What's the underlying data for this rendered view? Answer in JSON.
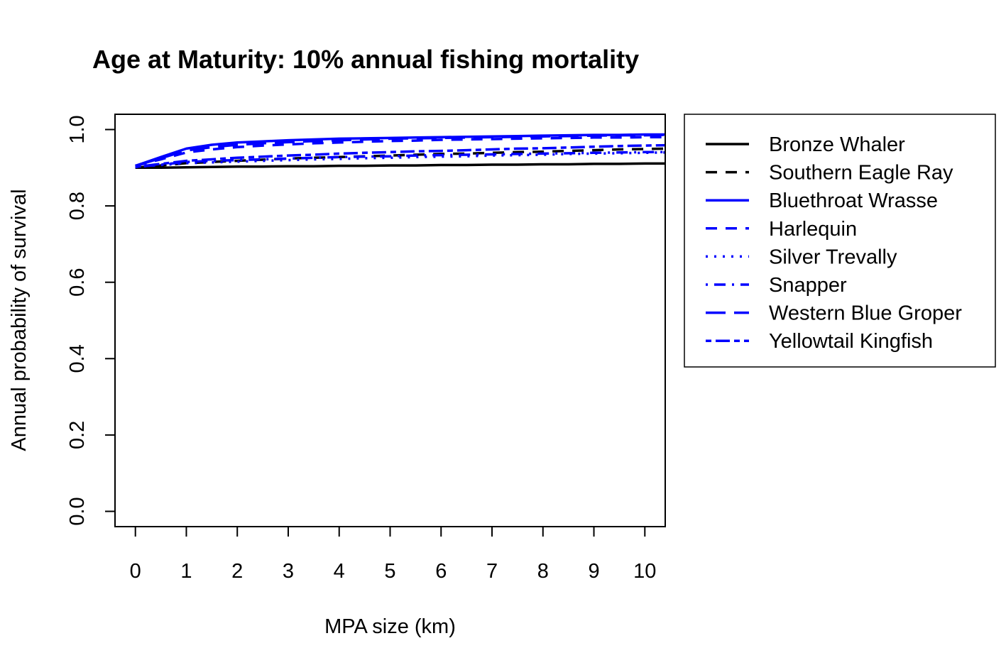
{
  "chart_data": {
    "type": "line",
    "title": "Age at Maturity: 10% annual fishing mortality",
    "xlabel": "MPA size (km)",
    "ylabel": "Annual probability of survival",
    "xlim": [
      -0.4,
      10.4
    ],
    "ylim": [
      -0.04,
      1.04
    ],
    "x_ticks": [
      "0",
      "1",
      "2",
      "3",
      "4",
      "5",
      "6",
      "7",
      "8",
      "9",
      "10"
    ],
    "y_ticks": [
      "0.0",
      "0.2",
      "0.4",
      "0.6",
      "0.8",
      "1.0"
    ],
    "grid": false,
    "legend_position": "right",
    "x": [
      0,
      0.5,
      1,
      1.5,
      2,
      2.5,
      3,
      3.5,
      4,
      4.5,
      5,
      5.5,
      6,
      6.5,
      7,
      7.5,
      8,
      8.5,
      9,
      9.5,
      10,
      10.4
    ],
    "series": [
      {
        "name": "Bronze Whaler",
        "color": "#000000",
        "dash": "solid",
        "values": [
          0.9,
          0.9,
          0.901,
          0.902,
          0.903,
          0.903,
          0.904,
          0.904,
          0.905,
          0.905,
          0.906,
          0.906,
          0.907,
          0.907,
          0.908,
          0.908,
          0.909,
          0.909,
          0.91,
          0.91,
          0.911,
          0.911
        ]
      },
      {
        "name": "Southern Eagle Ray",
        "color": "#000000",
        "dash": "dashed",
        "values": [
          0.9,
          0.906,
          0.912,
          0.915,
          0.918,
          0.921,
          0.924,
          0.926,
          0.928,
          0.93,
          0.932,
          0.934,
          0.936,
          0.937,
          0.939,
          0.941,
          0.942,
          0.944,
          0.946,
          0.948,
          0.949,
          0.95
        ]
      },
      {
        "name": "Bluethroat Wrasse",
        "color": "#0000ff",
        "dash": "solid",
        "values": [
          0.905,
          0.928,
          0.95,
          0.96,
          0.966,
          0.969,
          0.972,
          0.974,
          0.976,
          0.977,
          0.978,
          0.979,
          0.98,
          0.981,
          0.982,
          0.983,
          0.984,
          0.985,
          0.986,
          0.986,
          0.987,
          0.987
        ]
      },
      {
        "name": "Harlequin",
        "color": "#0000ff",
        "dash": "dashed",
        "values": [
          0.905,
          0.922,
          0.94,
          0.948,
          0.954,
          0.958,
          0.961,
          0.964,
          0.966,
          0.968,
          0.97,
          0.971,
          0.973,
          0.974,
          0.975,
          0.976,
          0.977,
          0.978,
          0.979,
          0.979,
          0.98,
          0.98
        ]
      },
      {
        "name": "Silver Trevally",
        "color": "#0000ff",
        "dash": "dotted",
        "values": [
          0.902,
          0.907,
          0.912,
          0.914,
          0.916,
          0.918,
          0.92,
          0.922,
          0.923,
          0.925,
          0.926,
          0.928,
          0.929,
          0.93,
          0.932,
          0.933,
          0.934,
          0.936,
          0.937,
          0.938,
          0.939,
          0.94
        ]
      },
      {
        "name": "Snapper",
        "color": "#0000ff",
        "dash": "dotdash",
        "values": [
          0.902,
          0.908,
          0.915,
          0.918,
          0.92,
          0.922,
          0.924,
          0.926,
          0.928,
          0.929,
          0.93,
          0.932,
          0.933,
          0.934,
          0.935,
          0.936,
          0.937,
          0.938,
          0.939,
          0.94,
          0.941,
          0.941
        ]
      },
      {
        "name": "Western Blue Groper",
        "color": "#0000ff",
        "dash": "longdash",
        "values": [
          0.905,
          0.925,
          0.945,
          0.954,
          0.96,
          0.964,
          0.967,
          0.97,
          0.972,
          0.974,
          0.976,
          0.977,
          0.978,
          0.979,
          0.98,
          0.981,
          0.982,
          0.983,
          0.984,
          0.985,
          0.985,
          0.986
        ]
      },
      {
        "name": "Yellowtail Kingfish",
        "color": "#0000ff",
        "dash": "twodash",
        "values": [
          0.902,
          0.91,
          0.918,
          0.922,
          0.926,
          0.929,
          0.932,
          0.934,
          0.937,
          0.939,
          0.941,
          0.943,
          0.944,
          0.946,
          0.948,
          0.95,
          0.951,
          0.953,
          0.955,
          0.957,
          0.958,
          0.959
        ]
      }
    ]
  }
}
